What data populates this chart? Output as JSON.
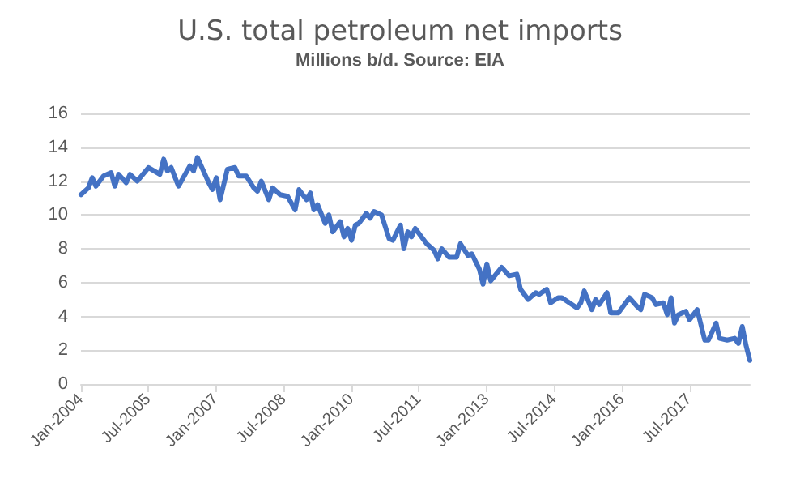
{
  "chart_data": {
    "type": "line",
    "title": "U.S. total petroleum net imports",
    "subtitle": "Millions b/d. Source: EIA",
    "x": [
      "2004-01",
      "2004-03",
      "2004-04",
      "2004-05",
      "2004-07",
      "2004-09",
      "2004-10",
      "2004-11",
      "2005-01",
      "2005-02",
      "2005-04",
      "2005-07",
      "2005-10",
      "2005-11",
      "2005-12",
      "2006-01",
      "2006-03",
      "2006-06",
      "2006-07",
      "2006-08",
      "2006-11",
      "2006-12",
      "2007-01",
      "2007-02",
      "2007-04",
      "2007-06",
      "2007-07",
      "2007-09",
      "2007-11",
      "2007-12",
      "2008-01",
      "2008-03",
      "2008-04",
      "2008-06",
      "2008-08",
      "2008-10",
      "2008-11",
      "2009-01",
      "2009-02",
      "2009-03",
      "2009-04",
      "2009-06",
      "2009-07",
      "2009-08",
      "2009-10",
      "2009-11",
      "2009-12",
      "2010-01",
      "2010-02",
      "2010-03",
      "2010-05",
      "2010-06",
      "2010-07",
      "2010-09",
      "2010-11",
      "2010-12",
      "2011-02",
      "2011-03",
      "2011-04",
      "2011-05",
      "2011-06",
      "2011-08",
      "2011-09",
      "2011-11",
      "2011-12",
      "2012-01",
      "2012-03",
      "2012-05",
      "2012-06",
      "2012-08",
      "2012-09",
      "2012-11",
      "2012-12",
      "2013-01",
      "2013-02",
      "2013-05",
      "2013-07",
      "2013-09",
      "2013-10",
      "2013-12",
      "2014-02",
      "2014-03",
      "2014-05",
      "2014-06",
      "2014-08",
      "2014-09",
      "2014-11",
      "2015-01",
      "2015-02",
      "2015-03",
      "2015-05",
      "2015-06",
      "2015-07",
      "2015-09",
      "2015-10",
      "2015-12",
      "2016-01",
      "2016-03",
      "2016-05",
      "2016-06",
      "2016-07",
      "2016-09",
      "2016-10",
      "2016-12",
      "2017-01",
      "2017-02",
      "2017-03",
      "2017-04",
      "2017-06",
      "2017-07",
      "2017-09",
      "2017-11",
      "2017-12",
      "2018-02",
      "2018-03",
      "2018-05",
      "2018-07",
      "2018-08",
      "2018-09",
      "2018-10",
      "2018-11"
    ],
    "series": [
      {
        "color": "#4472c4",
        "values": [
          11.2,
          11.6,
          12.2,
          11.7,
          12.3,
          12.5,
          11.7,
          12.4,
          11.9,
          12.4,
          12.0,
          12.8,
          12.4,
          13.3,
          12.6,
          12.8,
          11.7,
          12.9,
          12.6,
          13.4,
          11.9,
          11.5,
          12.2,
          10.9,
          12.7,
          12.8,
          12.3,
          12.3,
          11.6,
          11.4,
          12.0,
          10.9,
          11.6,
          11.2,
          11.1,
          10.3,
          11.5,
          10.9,
          11.3,
          10.3,
          10.6,
          9.5,
          10.0,
          9.0,
          9.6,
          8.7,
          9.2,
          8.5,
          9.4,
          9.5,
          10.1,
          9.8,
          10.2,
          10.0,
          8.6,
          8.5,
          9.4,
          8.0,
          9.0,
          8.7,
          9.2,
          8.6,
          8.3,
          7.9,
          7.4,
          8.0,
          7.5,
          7.5,
          8.3,
          7.6,
          7.7,
          6.8,
          5.9,
          7.1,
          6.1,
          6.9,
          6.4,
          6.5,
          5.6,
          5.0,
          5.4,
          5.3,
          5.6,
          4.8,
          5.1,
          5.1,
          4.8,
          4.5,
          4.8,
          5.5,
          4.4,
          5.0,
          4.7,
          5.4,
          4.2,
          4.2,
          4.5,
          5.1,
          4.6,
          4.4,
          5.3,
          5.1,
          4.7,
          4.8,
          4.1,
          5.1,
          3.6,
          4.1,
          4.3,
          3.8,
          4.4,
          2.6,
          2.6,
          3.6,
          2.7,
          2.6,
          2.7,
          2.4,
          3.4,
          2.3,
          1.4
        ]
      }
    ],
    "xlim": [
      "2004-01",
      "2018-11"
    ],
    "xticks": [
      {
        "value": "2004-01",
        "label": "Jan-2004"
      },
      {
        "value": "2005-07",
        "label": "Jul-2005"
      },
      {
        "value": "2007-01",
        "label": "Jan-2007"
      },
      {
        "value": "2008-07",
        "label": "Jul-2008"
      },
      {
        "value": "2010-01",
        "label": "Jan-2010"
      },
      {
        "value": "2011-07",
        "label": "Jul-2011"
      },
      {
        "value": "2013-01",
        "label": "Jan-2013"
      },
      {
        "value": "2014-07",
        "label": "Jul-2014"
      },
      {
        "value": "2016-01",
        "label": "Jan-2016"
      },
      {
        "value": "2017-07",
        "label": "Jul-2017"
      }
    ],
    "ylim": [
      0,
      16
    ],
    "yticks": [
      0,
      2,
      4,
      6,
      8,
      10,
      12,
      14,
      16
    ],
    "grid": "y",
    "marker": "none",
    "line_style": "solid"
  }
}
